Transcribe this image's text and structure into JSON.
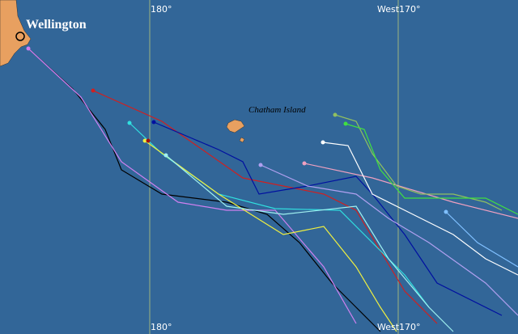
{
  "labels": {
    "city": "Wellington",
    "island": "Chatham Island"
  },
  "meridians": [
    {
      "top": "180°",
      "bottom": "180°"
    },
    {
      "top": "West170°",
      "bottom": "West170°"
    }
  ]
}
